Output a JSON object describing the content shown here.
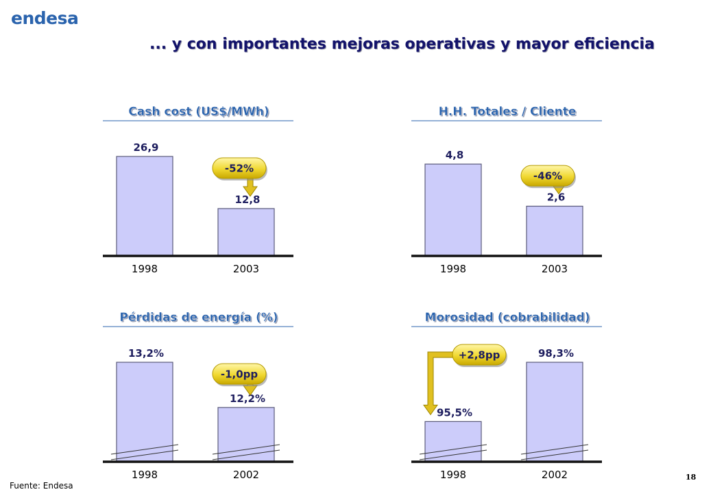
{
  "logo": "endesa",
  "title": "... y con importantes mejoras operativas y mayor eficiencia",
  "source": "Fuente: Endesa",
  "page_number": "18",
  "colors": {
    "bar_fill": "#ccccfa",
    "bar_stroke": "#5a5a7a",
    "badge": "#f0d830",
    "arrow": "#e0c020",
    "title_text": "#2a63ad",
    "value_text": "#1d1d5e"
  },
  "chart_data": [
    {
      "type": "bar",
      "title": "Cash cost (US$/MWh)",
      "categories": [
        "1998",
        "2003"
      ],
      "values": [
        26.9,
        12.8
      ],
      "value_labels": [
        "26,9",
        "12,8"
      ],
      "badge": "-52%",
      "badge_direction": "down",
      "axis_break": false,
      "ylim": [
        0,
        26.9
      ]
    },
    {
      "type": "bar",
      "title": "H.H. Totales / Cliente",
      "categories": [
        "1998",
        "2003"
      ],
      "values": [
        4.8,
        2.6
      ],
      "value_labels": [
        "4,8",
        "2,6"
      ],
      "badge": "-46%",
      "badge_direction": "down",
      "axis_break": false,
      "ylim": [
        0,
        5.2
      ]
    },
    {
      "type": "bar",
      "title": "Pérdidas de energía (%)",
      "categories": [
        "1998",
        "2002"
      ],
      "values": [
        13.2,
        12.2
      ],
      "value_labels": [
        "13,2%",
        "12,2%"
      ],
      "badge": "-1,0pp",
      "badge_direction": "down",
      "axis_break": true,
      "ylim": [
        11.0,
        13.2
      ]
    },
    {
      "type": "bar",
      "title": "Morosidad (cobrabilidad)",
      "categories": [
        "1998",
        "2002"
      ],
      "values": [
        95.5,
        98.3
      ],
      "value_labels": [
        "95,5%",
        "98,3%"
      ],
      "badge": "+2,8pp",
      "badge_direction": "up",
      "axis_break": true,
      "ylim": [
        93.6,
        98.3
      ]
    }
  ]
}
